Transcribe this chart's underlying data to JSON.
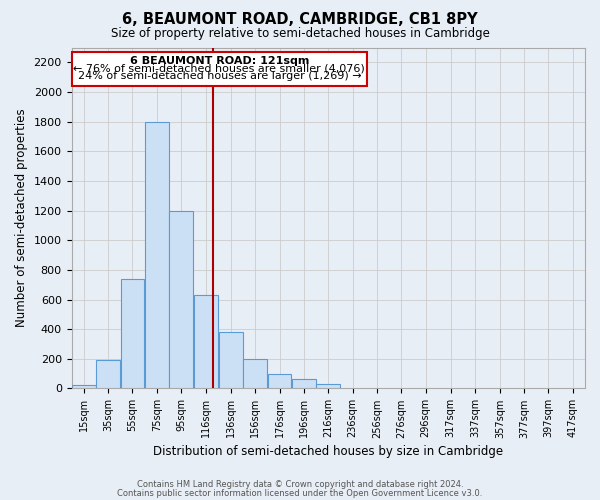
{
  "title": "6, BEAUMONT ROAD, CAMBRIDGE, CB1 8PY",
  "subtitle": "Size of property relative to semi-detached houses in Cambridge",
  "xlabel": "Distribution of semi-detached houses by size in Cambridge",
  "ylabel": "Number of semi-detached properties",
  "footer_line1": "Contains HM Land Registry data © Crown copyright and database right 2024.",
  "footer_line2": "Contains public sector information licensed under the Open Government Licence v3.0.",
  "bin_labels": [
    "15sqm",
    "35sqm",
    "55sqm",
    "75sqm",
    "95sqm",
    "116sqm",
    "136sqm",
    "156sqm",
    "176sqm",
    "196sqm",
    "216sqm",
    "236sqm",
    "256sqm",
    "276sqm",
    "296sqm",
    "317sqm",
    "337sqm",
    "357sqm",
    "377sqm",
    "397sqm",
    "417sqm"
  ],
  "bin_edges": [
    5,
    25,
    45,
    65,
    85,
    105,
    126,
    146,
    166,
    186,
    206,
    226,
    246,
    266,
    286,
    306,
    327,
    347,
    367,
    387,
    407,
    427
  ],
  "bar_heights": [
    25,
    190,
    740,
    1800,
    1200,
    630,
    380,
    200,
    100,
    65,
    30,
    0,
    0,
    0,
    0,
    0,
    0,
    0,
    0,
    0,
    0
  ],
  "bar_facecolor": "#cce0f5",
  "bar_edgecolor": "#5b9bd5",
  "property_line_x": 121,
  "property_line_color": "#aa0000",
  "annotation_text_line1": "6 BEAUMONT ROAD: 121sqm",
  "annotation_text_line2": "← 76% of semi-detached houses are smaller (4,076)",
  "annotation_text_line3": "24% of semi-detached houses are larger (1,269) →",
  "annotation_box_facecolor": "#ffffff",
  "annotation_box_edgecolor": "#cc0000",
  "ylim": [
    0,
    2300
  ],
  "yticks": [
    0,
    200,
    400,
    600,
    800,
    1000,
    1200,
    1400,
    1600,
    1800,
    2000,
    2200
  ],
  "grid_color": "#cccccc",
  "background_color": "#e8eef5",
  "plot_bg_color": "#e8eef5"
}
